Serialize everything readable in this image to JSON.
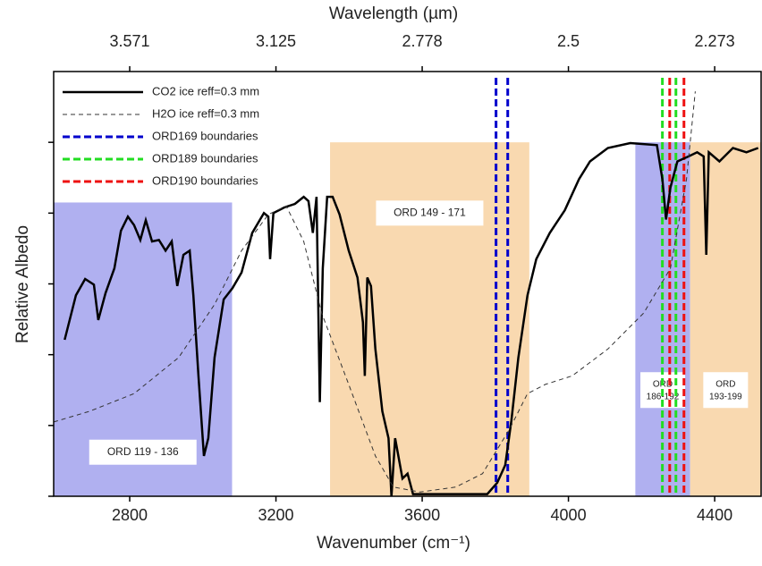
{
  "chart_data": {
    "type": "line",
    "title": "Wavelength (µm)",
    "x_label": "Wavenumber (cm⁻¹)",
    "y_label": "Relative Albedo",
    "xlim": [
      2592,
      4527
    ],
    "xticks": [
      2800,
      3200,
      3600,
      4000,
      4400
    ],
    "x2ticks": [
      {
        "value": 2800,
        "label": "3.571"
      },
      {
        "value": 3200,
        "label": "3.125"
      },
      {
        "value": 3600,
        "label": "2.778"
      },
      {
        "value": 4000,
        "label": "2.5"
      },
      {
        "value": 4400,
        "label": "2.273"
      }
    ],
    "ylim": [
      0,
      6
    ],
    "yticks": [
      0,
      1,
      2,
      3,
      4,
      5
    ],
    "regions": [
      {
        "label": "ORD 119 - 136",
        "xlim": [
          2592,
          3080
        ],
        "top": 4.15,
        "color": "#b0b0f0"
      },
      {
        "label": "ORD 149 - 171",
        "xlim": [
          3348,
          3893
        ],
        "top": 5.0,
        "color": "#f9d9b0"
      },
      {
        "label": "ORD 186-192",
        "xlim": [
          4183,
          4333
        ],
        "top": 5.0,
        "color": "#b0b0f0"
      },
      {
        "label": "ORD 193-199",
        "xlim": [
          4333,
          4527
        ],
        "top": 5.0,
        "color": "#f9d9b0"
      }
    ],
    "series": [
      {
        "name": "CO2 ice reff=0.3 mm",
        "color": "#000000",
        "x": [
          2622,
          2653,
          2678,
          2702,
          2714,
          2734,
          2758,
          2776,
          2795,
          2812,
          2829,
          2844,
          2861,
          2880,
          2898,
          2915,
          2930,
          2947,
          2964,
          2974,
          2988,
          3003,
          3015,
          3032,
          3057,
          3081,
          3106,
          3135,
          3167,
          3179,
          3184,
          3193,
          3223,
          3252,
          3276,
          3289,
          3301,
          3311,
          3320,
          3328,
          3340,
          3355,
          3374,
          3399,
          3423,
          3438,
          3443,
          3450,
          3460,
          3472,
          3491,
          3508,
          3516,
          3526,
          3546,
          3560,
          3575,
          3607,
          3717,
          3778,
          3805,
          3827,
          3844,
          3863,
          3888,
          3912,
          3949,
          3990,
          4029,
          4059,
          4108,
          4169,
          4242,
          4257,
          4267,
          4279,
          4298,
          4328,
          4352,
          4370,
          4377,
          4384,
          4413,
          4450,
          4487,
          4519
        ],
        "values": [
          2.21,
          2.84,
          3.07,
          2.99,
          2.49,
          2.87,
          3.22,
          3.75,
          3.95,
          3.83,
          3.62,
          3.9,
          3.6,
          3.62,
          3.47,
          3.6,
          2.97,
          3.41,
          3.47,
          2.84,
          1.7,
          0.57,
          0.82,
          1.96,
          2.78,
          2.94,
          3.16,
          3.72,
          4.0,
          3.95,
          3.35,
          4.0,
          4.08,
          4.13,
          4.23,
          4.17,
          3.72,
          4.23,
          1.33,
          3.22,
          4.23,
          4.23,
          3.98,
          3.47,
          3.09,
          2.46,
          1.7,
          3.09,
          2.97,
          2.08,
          1.2,
          0.82,
          0,
          0.82,
          0.25,
          0.32,
          0.03,
          0.03,
          0.03,
          0.03,
          0.19,
          0.44,
          1.07,
          1.96,
          2.84,
          3.35,
          3.72,
          4.04,
          4.48,
          4.73,
          4.92,
          4.99,
          4.96,
          4.48,
          3.91,
          4.36,
          4.73,
          4.8,
          4.86,
          4.8,
          3.41,
          4.86,
          4.73,
          4.92,
          4.86,
          4.92
        ]
      },
      {
        "name": "H2O ice reff=0.3 mm",
        "color": "#333333",
        "dashed": true,
        "x": [
          2592,
          2690,
          2812,
          2934,
          3032,
          3106,
          3179,
          3228,
          3276,
          3325,
          3399,
          3472,
          3521,
          3594,
          3692,
          3765,
          3839,
          3888,
          3937,
          4010,
          4108,
          4206,
          4279,
          4323,
          4347
        ],
        "values": [
          1.05,
          1.2,
          1.45,
          1.96,
          2.71,
          3.47,
          3.98,
          4.1,
          3.6,
          2.59,
          1.58,
          0.57,
          0.13,
          0.06,
          0.13,
          0.32,
          0.95,
          1.45,
          1.58,
          1.7,
          2.08,
          2.59,
          3.22,
          4.48,
          5.72
        ]
      }
    ],
    "vlines": [
      {
        "name": "ORD169 boundaries",
        "color": "#0000cc",
        "x": [
          3802,
          3834
        ]
      },
      {
        "name": "ORD189 boundaries",
        "color": "#22dd22",
        "x": [
          4257,
          4294
        ]
      },
      {
        "name": "ORD190 boundaries",
        "color": "#ee1111",
        "x": [
          4277,
          4316
        ]
      }
    ]
  }
}
